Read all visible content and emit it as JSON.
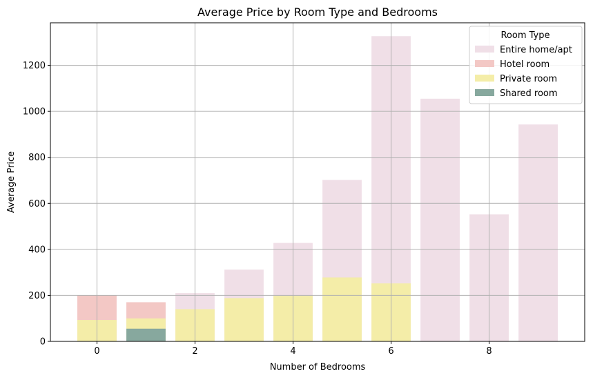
{
  "chart_data": {
    "type": "bar",
    "title": "Average Price by Room Type and Bedrooms",
    "xlabel": "Number of Bedrooms",
    "ylabel": "Average Price",
    "x": [
      0,
      1,
      2,
      3,
      4,
      5,
      6,
      7,
      8,
      9
    ],
    "xticks": [
      0,
      2,
      4,
      6,
      8
    ],
    "xlim": [
      -0.95,
      9.95
    ],
    "yticks": [
      0,
      200,
      400,
      600,
      800,
      1000,
      1200
    ],
    "ylim": [
      0,
      1385
    ],
    "grid": true,
    "legend": {
      "title": "Room Type",
      "position": "top-right"
    },
    "series": [
      {
        "name": "Entire home/apt",
        "color": "#f0dfe7",
        "values": [
          200,
          170,
          210,
          312,
          428,
          702,
          1327,
          1055,
          552,
          943
        ]
      },
      {
        "name": "Hotel room",
        "color": "#f3c8c5",
        "values": [
          200,
          170,
          null,
          null,
          null,
          null,
          null,
          null,
          null,
          null
        ]
      },
      {
        "name": "Private room",
        "color": "#f4eda8",
        "values": [
          93,
          100,
          140,
          188,
          198,
          278,
          252,
          null,
          null,
          null
        ]
      },
      {
        "name": "Shared room",
        "color": "#87a89e",
        "values": [
          null,
          55,
          null,
          null,
          null,
          null,
          null,
          null,
          null,
          null
        ]
      }
    ]
  }
}
